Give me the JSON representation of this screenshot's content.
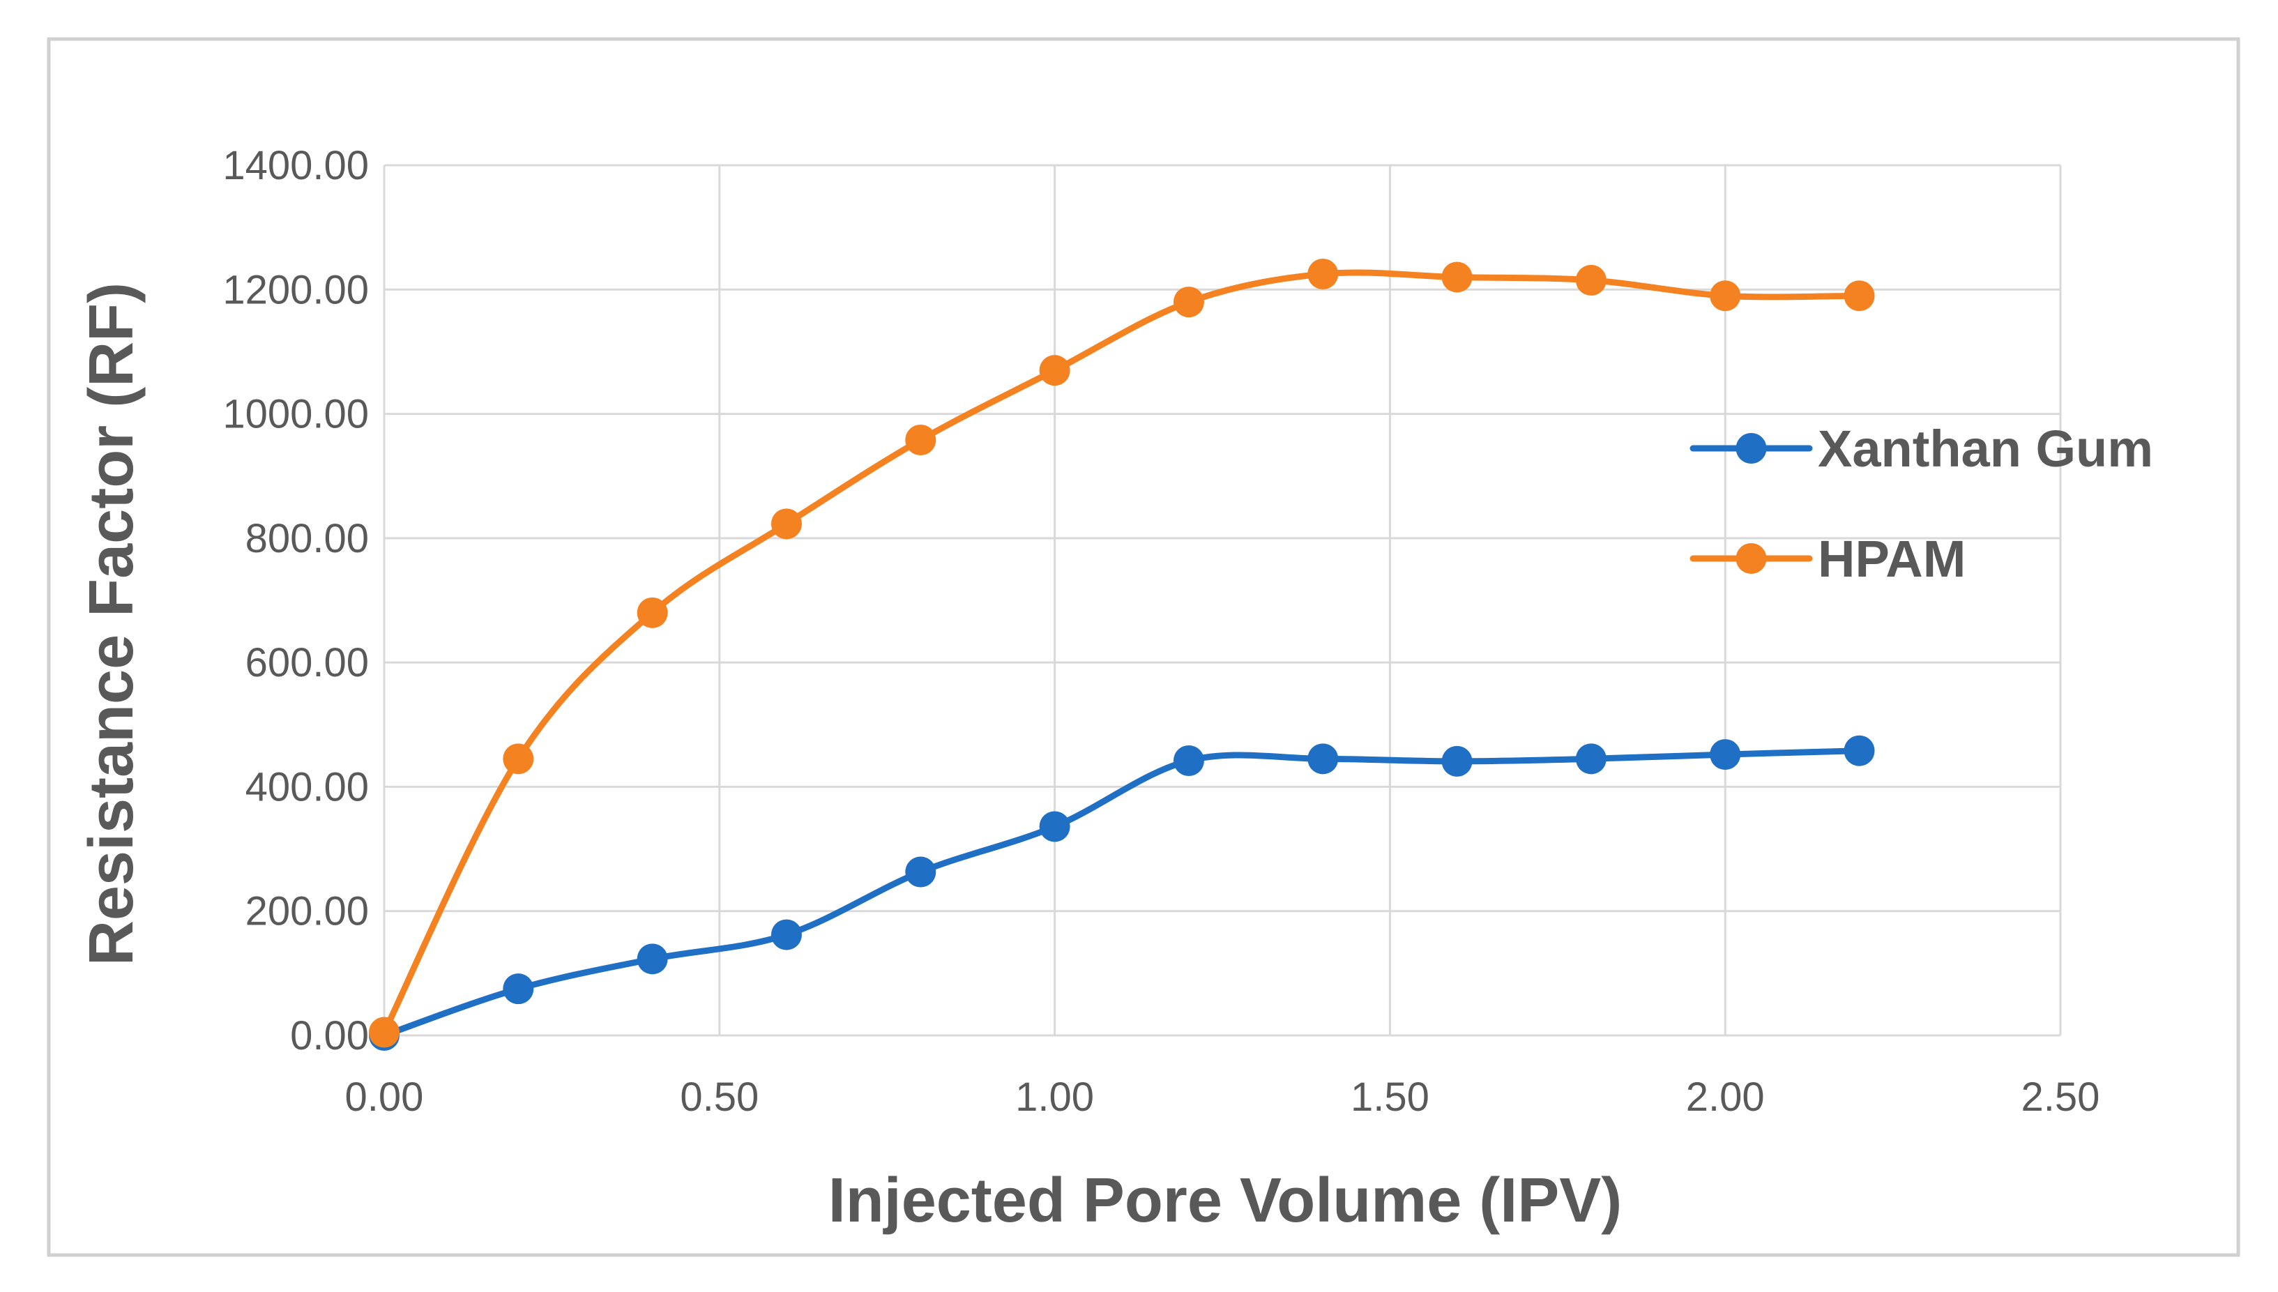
{
  "chart_data": {
    "type": "line",
    "title": "",
    "xlabel": "Injected Pore Volume (IPV)",
    "ylabel": "Resistance Factor (RF)",
    "xlim": [
      0,
      2.5
    ],
    "ylim": [
      0,
      1400
    ],
    "x_ticks": [
      0,
      0.5,
      1.0,
      1.5,
      2.0,
      2.5
    ],
    "x_tick_labels": [
      "0.00",
      "0.50",
      "1.00",
      "1.50",
      "2.00",
      "2.50"
    ],
    "y_ticks": [
      0,
      200,
      400,
      600,
      800,
      1000,
      1200,
      1400
    ],
    "y_tick_labels": [
      "0.00",
      "200.00",
      "400.00",
      "600.00",
      "800.00",
      "1000.00",
      "1200.00",
      "1400.00"
    ],
    "grid": true,
    "smooth": true,
    "legend_position": "right",
    "series": [
      {
        "name": "Xanthan Gum",
        "color": "#1f6fc5",
        "x": [
          0.0,
          0.2,
          0.4,
          0.6,
          0.8,
          1.0,
          1.2,
          1.4,
          1.6,
          1.8,
          2.0,
          2.2
        ],
        "values": [
          0,
          75,
          123,
          162,
          263,
          336,
          442,
          445,
          441,
          445,
          452,
          458
        ]
      },
      {
        "name": "HPAM",
        "color": "#f58220",
        "x": [
          0.0,
          0.2,
          0.4,
          0.6,
          0.8,
          1.0,
          1.2,
          1.4,
          1.6,
          1.8,
          2.0,
          2.2
        ],
        "values": [
          5,
          445,
          680,
          823,
          958,
          1070,
          1180,
          1225,
          1220,
          1215,
          1190,
          1190
        ]
      }
    ]
  }
}
